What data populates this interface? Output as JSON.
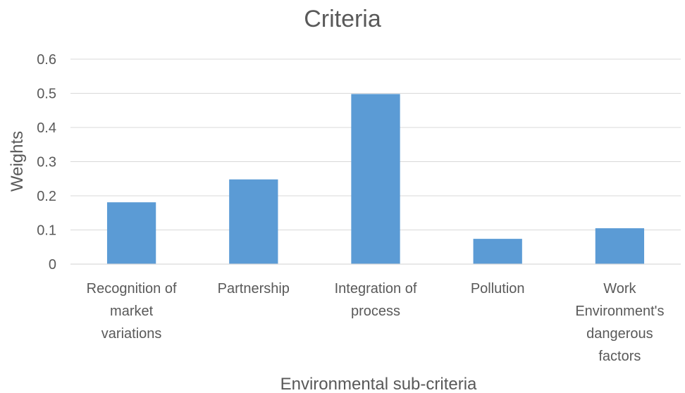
{
  "chart_data": {
    "type": "bar",
    "title": "Criteria",
    "xlabel": "Environmental sub-criteria",
    "ylabel": "Weights",
    "ylim": [
      0,
      0.6
    ],
    "yticks": [
      "0",
      "0.1",
      "0.2",
      "0.3",
      "0.4",
      "0.5",
      "0.6"
    ],
    "grid": true,
    "legend": "none",
    "categories": [
      [
        "Recognition of",
        "market",
        "variations"
      ],
      [
        "Partnership"
      ],
      [
        "Integration of",
        "process"
      ],
      [
        "Pollution"
      ],
      [
        "Work",
        "Environment's",
        "dangerous",
        "factors"
      ]
    ],
    "values": [
      0.181,
      0.248,
      0.498,
      0.074,
      0.105
    ],
    "bar_color": "#5b9bd5"
  }
}
